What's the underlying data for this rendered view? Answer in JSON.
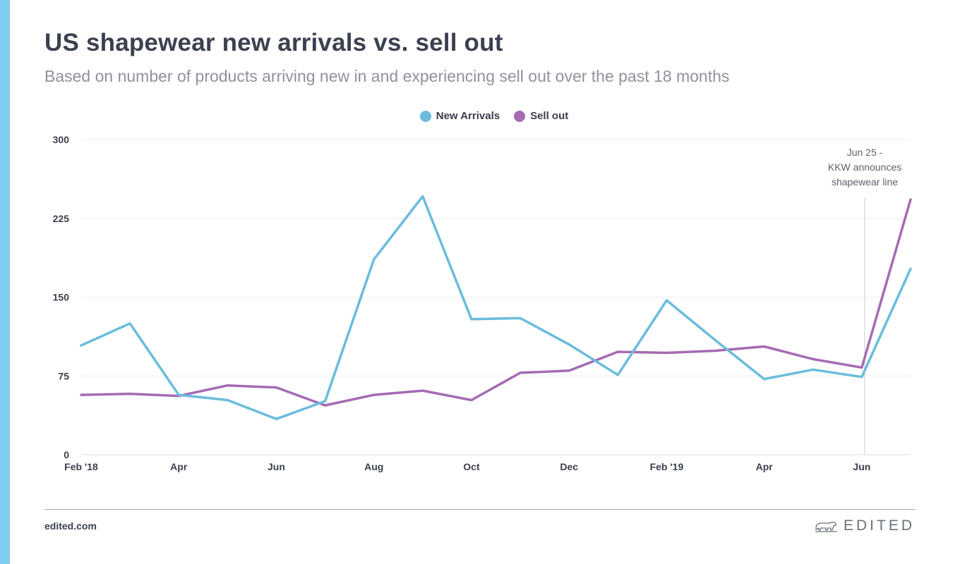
{
  "header": {
    "title": "US shapewear new arrivals vs. sell out",
    "subtitle": "Based on number of products arriving new in and experiencing sell out over the past 18 months"
  },
  "footer": {
    "url": "edited.com",
    "brand": "EDITED",
    "brand_icon": "polar-bear-logo"
  },
  "colors": {
    "accent_bar": "#7ecdf0",
    "new_arrivals": "#6bbcdd",
    "sell_out": "#a56bb3",
    "grid": "#eceef0",
    "annotation_line": "#c6c9ce"
  },
  "chart_data": {
    "type": "line",
    "title": "US shapewear new arrivals vs. sell out",
    "subtitle": "Based on number of products arriving new in and experiencing sell out over the past 18 months",
    "x": [
      "Feb '18",
      "Mar '18",
      "Apr '18",
      "May '18",
      "Jun '18",
      "Jul '18",
      "Aug '18",
      "Sep '18",
      "Oct '18",
      "Nov '18",
      "Dec '18",
      "Jan '19",
      "Feb '19",
      "Mar '19",
      "Apr '19",
      "May '19",
      "Jun '19",
      "Jul '19"
    ],
    "x_tick_labels": [
      {
        "x": "Feb '18",
        "label": "Feb '18"
      },
      {
        "x": "Apr '18",
        "label": "Apr"
      },
      {
        "x": "Jun '18",
        "label": "Jun"
      },
      {
        "x": "Aug '18",
        "label": "Aug"
      },
      {
        "x": "Oct '18",
        "label": "Oct"
      },
      {
        "x": "Dec '18",
        "label": "Dec"
      },
      {
        "x": "Feb '19",
        "label": "Feb '19"
      },
      {
        "x": "Apr '19",
        "label": "Apr"
      },
      {
        "x": "Jun '19",
        "label": "Jun"
      }
    ],
    "yticks": [
      0,
      75,
      150,
      225,
      300
    ],
    "ylim": [
      0,
      300
    ],
    "grid": true,
    "legend": "top-center",
    "series": [
      {
        "name": "New Arrivals",
        "color": "#6bbcdd",
        "values": [
          104,
          125,
          57,
          52,
          34,
          51,
          186,
          246,
          129,
          130,
          105,
          76,
          147,
          109,
          72,
          81,
          74,
          177
        ]
      },
      {
        "name": "Sell out",
        "color": "#a56bb3",
        "values": [
          57,
          58,
          56,
          66,
          64,
          47,
          57,
          61,
          52,
          78,
          80,
          98,
          97,
          99,
          103,
          91,
          83,
          243
        ]
      }
    ],
    "annotations": [
      {
        "x_index": 17,
        "x_offset_fraction": 0.06,
        "y_top": 245,
        "lines": [
          "Jun 25 -",
          "KKW announces",
          "shapewear line"
        ]
      }
    ]
  }
}
